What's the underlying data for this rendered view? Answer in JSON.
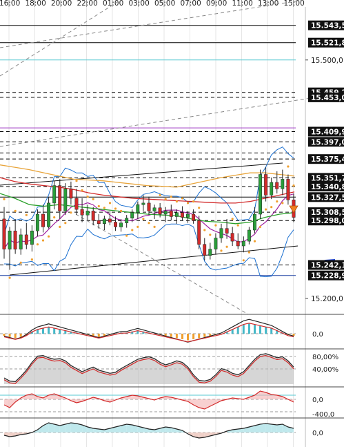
{
  "chart_data": {
    "type": "candlestick",
    "time_labels": [
      "16:00",
      "18:00",
      "20:00",
      "22:00",
      "01:00",
      "03:00",
      "05:00",
      "07:00",
      "09:00",
      "11:00",
      "13:00",
      "15:00"
    ],
    "price_axis_labels": [
      {
        "value": 15543.5,
        "text": "15.543,5",
        "tagged": true
      },
      {
        "value": 15521.8,
        "text": "15.521,8",
        "tagged": true
      },
      {
        "value": 15500.0,
        "text": "15.500,0",
        "tagged": false
      },
      {
        "value": 15459.2,
        "text": "15.459,2",
        "tagged": true
      },
      {
        "value": 15453.0,
        "text": "15.453,0",
        "tagged": true
      },
      {
        "value": 15409.9,
        "text": "15.409,9",
        "tagged": true
      },
      {
        "value": 15397.0,
        "text": "15.397,0",
        "tagged": true
      },
      {
        "value": 15375.4,
        "text": "15.375,4",
        "tagged": true
      },
      {
        "value": 15351.7,
        "text": "15.351,7",
        "tagged": true
      },
      {
        "value": 15340.8,
        "text": "15.340,8",
        "tagged": true
      },
      {
        "value": 15327.5,
        "text": "15.327,5",
        "tagged": true
      },
      {
        "value": 15308.5,
        "text": "15.308,5",
        "tagged": true
      },
      {
        "value": 15298.0,
        "text": "15.298,0",
        "tagged": true
      },
      {
        "value": 15242.1,
        "text": "15.242,1",
        "tagged": true
      },
      {
        "value": 15228.9,
        "text": "15.228,9",
        "tagged": true
      },
      {
        "value": 15200.0,
        "text": "15.200,0",
        "tagged": false
      }
    ],
    "price_range": [
      15180,
      15565
    ],
    "horizontal_levels": [
      {
        "value": 15543.5,
        "style": "solid",
        "color": "#000000"
      },
      {
        "value": 15521.8,
        "style": "solid",
        "color": "#000000"
      },
      {
        "value": 15500.0,
        "style": "solid",
        "color": "#55c8d0"
      },
      {
        "value": 15459.2,
        "style": "dashed",
        "color": "#000000"
      },
      {
        "value": 15453.0,
        "style": "dashed",
        "color": "#000000"
      },
      {
        "value": 15414.5,
        "style": "solid",
        "color": "#9b30c0"
      },
      {
        "value": 15409.9,
        "style": "dashed",
        "color": "#000000"
      },
      {
        "value": 15397.0,
        "style": "dashed",
        "color": "#000000"
      },
      {
        "value": 15383.0,
        "style": "dashed",
        "color": "#000000"
      },
      {
        "value": 15375.4,
        "style": "dashed",
        "color": "#000000"
      },
      {
        "value": 15351.7,
        "style": "dashed",
        "color": "#000000"
      },
      {
        "value": 15340.8,
        "style": "dashed",
        "color": "#000000"
      },
      {
        "value": 15327.5,
        "style": "solid",
        "color": "#000000"
      },
      {
        "value": 15308.5,
        "style": "dashed",
        "color": "#000000"
      },
      {
        "value": 15298.0,
        "style": "dashed",
        "color": "#000000"
      },
      {
        "value": 15242.1,
        "style": "dashed",
        "color": "#000000"
      },
      {
        "value": 15228.9,
        "style": "solid",
        "color": "#1a3fa0"
      }
    ],
    "candles": [
      [
        15300,
        15315,
        15250,
        15262
      ],
      [
        15262,
        15290,
        15236,
        15285
      ],
      [
        15285,
        15300,
        15256,
        15262
      ],
      [
        15262,
        15288,
        15255,
        15280
      ],
      [
        15280,
        15295,
        15262,
        15268
      ],
      [
        15268,
        15292,
        15259,
        15285
      ],
      [
        15285,
        15312,
        15278,
        15306
      ],
      [
        15306,
        15318,
        15283,
        15290
      ],
      [
        15290,
        15328,
        15288,
        15320
      ],
      [
        15320,
        15348,
        15312,
        15342
      ],
      [
        15342,
        15350,
        15300,
        15310
      ],
      [
        15310,
        15345,
        15305,
        15338
      ],
      [
        15338,
        15347,
        15318,
        15326
      ],
      [
        15326,
        15338,
        15305,
        15312
      ],
      [
        15312,
        15326,
        15296,
        15305
      ],
      [
        15305,
        15318,
        15298,
        15310
      ],
      [
        15310,
        15315,
        15292,
        15298
      ],
      [
        15298,
        15306,
        15288,
        15294
      ],
      [
        15294,
        15304,
        15286,
        15300
      ],
      [
        15300,
        15310,
        15292,
        15296
      ],
      [
        15296,
        15303,
        15285,
        15290
      ],
      [
        15290,
        15300,
        15284,
        15295
      ],
      [
        15295,
        15305,
        15289,
        15301
      ],
      [
        15301,
        15312,
        15296,
        15308
      ],
      [
        15308,
        15322,
        15300,
        15318
      ],
      [
        15318,
        15330,
        15310,
        15320
      ],
      [
        15320,
        15328,
        15305,
        15310
      ],
      [
        15310,
        15318,
        15300,
        15314
      ],
      [
        15314,
        15320,
        15302,
        15306
      ],
      [
        15306,
        15315,
        15296,
        15310
      ],
      [
        15310,
        15318,
        15298,
        15303
      ],
      [
        15303,
        15312,
        15294,
        15308
      ],
      [
        15308,
        15316,
        15298,
        15302
      ],
      [
        15302,
        15310,
        15295,
        15306
      ],
      [
        15306,
        15312,
        15294,
        15298
      ],
      [
        15298,
        15304,
        15262,
        15268
      ],
      [
        15268,
        15276,
        15248,
        15254
      ],
      [
        15254,
        15270,
        15249,
        15262
      ],
      [
        15262,
        15282,
        15255,
        15276
      ],
      [
        15276,
        15294,
        15270,
        15288
      ],
      [
        15288,
        15300,
        15275,
        15282
      ],
      [
        15282,
        15290,
        15266,
        15272
      ],
      [
        15272,
        15282,
        15262,
        15266
      ],
      [
        15266,
        15278,
        15258,
        15272
      ],
      [
        15272,
        15290,
        15268,
        15286
      ],
      [
        15286,
        15315,
        15282,
        15306
      ],
      [
        15306,
        15362,
        15300,
        15356
      ],
      [
        15356,
        15365,
        15322,
        15330
      ],
      [
        15330,
        15352,
        15325,
        15346
      ],
      [
        15346,
        15360,
        15332,
        15338
      ],
      [
        15338,
        15362,
        15330,
        15350
      ],
      [
        15350,
        15356,
        15318,
        15324
      ],
      [
        15324,
        15332,
        15296,
        15302
      ]
    ],
    "moving_averages": [
      {
        "color": "#e8a43a",
        "points": [
          15368,
          15365,
          15362,
          15358,
          15354,
          15350,
          15349,
          15348,
          15346,
          15344,
          15342,
          15341,
          15340,
          15344,
          15348,
          15352,
          15355,
          15358,
          15358,
          15356,
          15354
        ]
      },
      {
        "color": "#d22a2a",
        "points": [
          15352,
          15347,
          15344,
          15342,
          15340,
          15337,
          15333,
          15330,
          15328,
          15326,
          15325,
          15324,
          15323,
          15322,
          15321,
          15320,
          15320,
          15322,
          15326,
          15330,
          15334
        ]
      },
      {
        "color": "#2aa02a",
        "points": [
          15332,
          15326,
          15318,
          15316,
          15318,
          15316,
          15314,
          15312,
          15310,
          15308,
          15306,
          15305,
          15304,
          15300,
          15297,
          15296,
          15294,
          15296,
          15302,
          15306,
          15308
        ]
      }
    ],
    "panels": [
      {
        "name": "macd",
        "labels": [
          "0,0"
        ]
      },
      {
        "name": "stochastic",
        "labels": [
          "80,00%",
          "40,00%"
        ]
      },
      {
        "name": "oscillator",
        "labels": [
          "0,0",
          "-400,0"
        ]
      },
      {
        "name": "momentum",
        "labels": [
          "0,0"
        ]
      }
    ],
    "colors": {
      "bull": "#2a9d3a",
      "bear": "#d22a2a",
      "bollinger": "#1a6fd0",
      "sar": "#f0a030",
      "signal_arrow": "#f08020"
    }
  }
}
